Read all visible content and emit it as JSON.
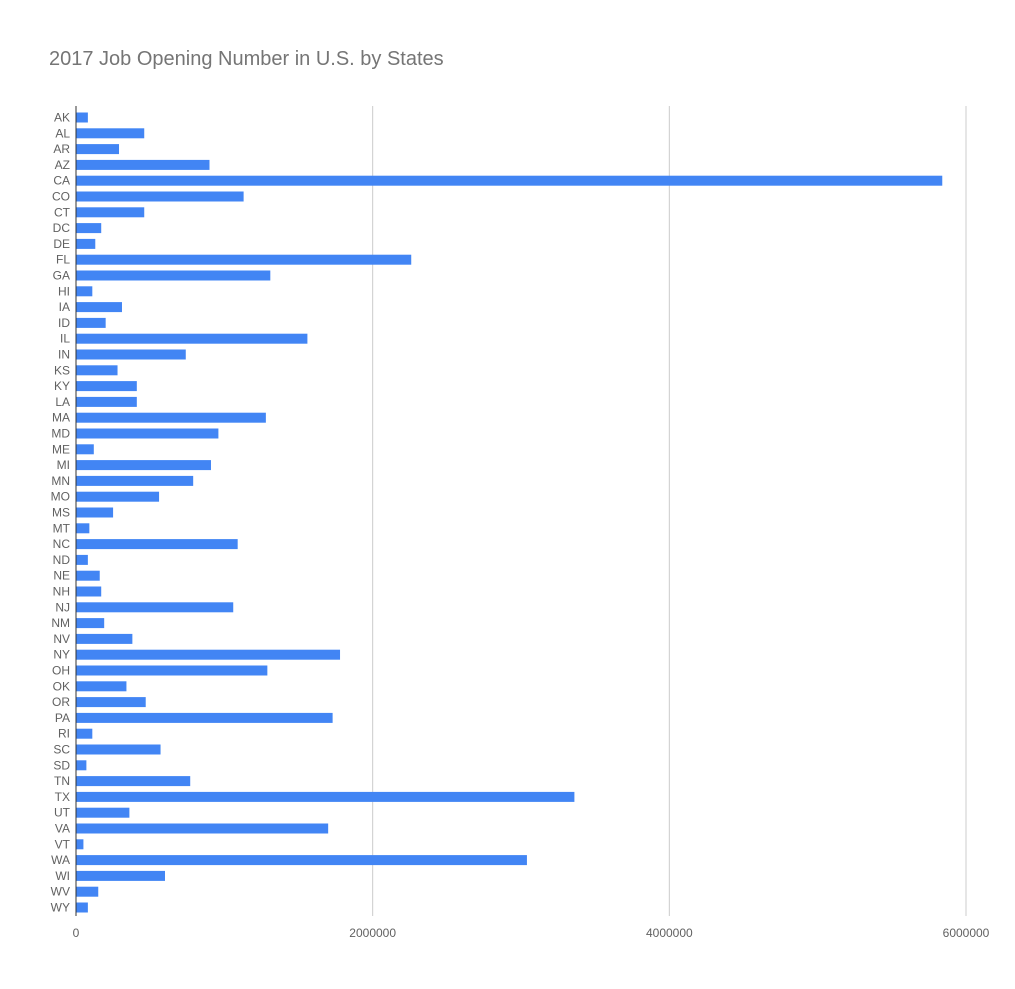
{
  "chart_data": {
    "type": "bar",
    "orientation": "horizontal",
    "title": "2017 Job Opening Number in U.S. by States",
    "xlabel": "",
    "ylabel": "",
    "xlim": [
      0,
      6000000
    ],
    "x_ticks": [
      "0",
      "2000000",
      "4000000",
      "6000000"
    ],
    "grid": true,
    "legend": "none",
    "bar_color": "#4285f4",
    "categories": [
      "AK",
      "AL",
      "AR",
      "AZ",
      "CA",
      "CO",
      "CT",
      "DC",
      "DE",
      "FL",
      "GA",
      "HI",
      "IA",
      "ID",
      "IL",
      "IN",
      "KS",
      "KY",
      "LA",
      "MA",
      "MD",
      "ME",
      "MI",
      "MN",
      "MO",
      "MS",
      "MT",
      "NC",
      "ND",
      "NE",
      "NH",
      "NJ",
      "NM",
      "NV",
      "NY",
      "OH",
      "OK",
      "OR",
      "PA",
      "RI",
      "SC",
      "SD",
      "TN",
      "TX",
      "UT",
      "VA",
      "VT",
      "WA",
      "WI",
      "WV",
      "WY"
    ],
    "values": [
      80000,
      460000,
      290000,
      900000,
      5840000,
      1130000,
      460000,
      170000,
      130000,
      2260000,
      1310000,
      110000,
      310000,
      200000,
      1560000,
      740000,
      280000,
      410000,
      410000,
      1280000,
      960000,
      120000,
      910000,
      790000,
      560000,
      250000,
      90000,
      1090000,
      80000,
      160000,
      170000,
      1060000,
      190000,
      380000,
      1780000,
      1290000,
      340000,
      470000,
      1730000,
      110000,
      570000,
      70000,
      770000,
      3360000,
      360000,
      1700000,
      50000,
      3040000,
      600000,
      150000,
      80000
    ]
  }
}
